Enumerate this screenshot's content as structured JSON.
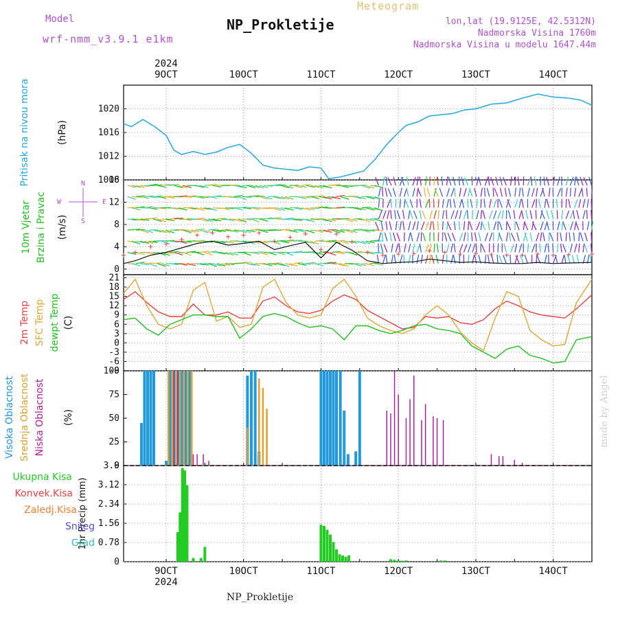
{
  "header": {
    "model_label": "Model",
    "model_name": "wrf-nmm_v3.9.1 e1km",
    "title": "NP_Prokletije",
    "subtitle": "Meteogram",
    "location": "lon,lat (19.9125E, 42.5312N)",
    "altitude": "Nadmorska Visina 1760m",
    "model_altitude": "Nadmorska Visina u modelu 1647.44m"
  },
  "footer": {
    "station": "NP_Prokletije",
    "credit": "made by Angel"
  },
  "time_axis": {
    "year": "2024",
    "day_ticks": [
      "9OCT",
      "10OCT",
      "11OCT",
      "12OCT",
      "13OCT",
      "14OCT"
    ],
    "day_values": [
      9,
      10,
      11,
      12,
      13,
      14
    ],
    "range": [
      8.45,
      14.5
    ]
  },
  "panels": {
    "pressure": {
      "label": "Pritisak na nivou mora",
      "unit": "(hPa)"
    },
    "wind": {
      "label1": "10m Vjetar",
      "label2": "Brzina i Pravac",
      "unit": "(m/s)",
      "rose_n": "N",
      "rose_w": "W",
      "rose_e": "E",
      "rose_s": "S"
    },
    "temp": {
      "label1": "2m Temp",
      "label2": "SFC Temp",
      "label3": "dewpt Temp",
      "unit": "(C)"
    },
    "cloud": {
      "label1": "Visoka Oblacnost",
      "label2": "Srednja Oblacnost",
      "label3": "Niska Oblacnost",
      "unit": "(%)"
    },
    "precip": {
      "unit": "1hr Precip (mm)",
      "legend": [
        "Ukupna Kisa",
        "Konvek.Kisa",
        "Zaledj.Kisa",
        "Snijeg",
        "Grad"
      ]
    }
  },
  "colors": {
    "pressure": "#22a8e0",
    "t2m": "#e84040",
    "tsfc": "#e0a830",
    "dewpt": "#20c020",
    "high_cloud": "#2298dd",
    "mid_cloud": "#e0a030",
    "low_cloud": "#b0209a",
    "rain": "#22cc22",
    "conv": "#e84040",
    "frz": "#f08030",
    "snow": "#5050e0",
    "hail": "#30c0c0",
    "purple": "#b050d0"
  },
  "chart_data": [
    {
      "type": "line",
      "title": "Pritisak na nivou mora",
      "ylabel": "(hPa)",
      "ylim": [
        1008,
        1024
      ],
      "yticks": [
        "1008",
        "1012",
        "1016",
        "1020"
      ],
      "x": [
        8.45,
        8.55,
        8.7,
        8.85,
        9.0,
        9.1,
        9.2,
        9.35,
        9.5,
        9.65,
        9.8,
        9.95,
        10.1,
        10.25,
        10.4,
        10.55,
        10.7,
        10.85,
        11.0,
        11.1,
        11.25,
        11.4,
        11.55,
        11.7,
        11.85,
        12.0,
        12.1,
        12.25,
        12.4,
        12.55,
        12.7,
        12.85,
        13.0,
        13.2,
        13.4,
        13.6,
        13.8,
        14.0,
        14.2,
        14.35,
        14.5
      ],
      "values": [
        1017.5,
        1017.0,
        1018.2,
        1017.0,
        1015.5,
        1013.0,
        1012.3,
        1012.8,
        1012.3,
        1012.7,
        1013.5,
        1014.0,
        1012.5,
        1010.5,
        1010.0,
        1009.8,
        1009.6,
        1010.2,
        1010.0,
        1008.2,
        1008.5,
        1009.0,
        1009.5,
        1011.5,
        1014.0,
        1016.0,
        1017.2,
        1017.8,
        1018.8,
        1019.0,
        1019.2,
        1019.8,
        1020.0,
        1020.8,
        1021.0,
        1021.8,
        1022.5,
        1022.0,
        1021.8,
        1021.5,
        1020.6
      ]
    },
    {
      "type": "line",
      "title": "10m Vjetar Brzina i Pravac",
      "ylabel": "(m/s)",
      "ylim": [
        -1,
        16
      ],
      "yticks": [
        "0",
        "4",
        "8",
        "12",
        "16"
      ],
      "series": [
        {
          "name": "10m Vjetar",
          "x": [
            8.45,
            8.6,
            8.8,
            9.0,
            9.2,
            9.4,
            9.6,
            9.8,
            10.0,
            10.2,
            10.4,
            10.6,
            10.8,
            11.0,
            11.2,
            11.4,
            11.6,
            11.8,
            12.0,
            12.2,
            12.4,
            12.6,
            12.8,
            13.0,
            13.2,
            13.4,
            13.6,
            13.8,
            14.0,
            14.2,
            14.5
          ],
          "values": [
            1.0,
            1.5,
            2.5,
            3.0,
            3.8,
            4.6,
            5.0,
            4.3,
            4.6,
            5.0,
            3.5,
            4.2,
            4.8,
            2.0,
            4.8,
            3.4,
            1.5,
            1.0,
            1.2,
            1.3,
            1.8,
            1.5,
            1.2,
            1.3,
            1.1,
            1.0,
            1.0,
            1.2,
            1.0,
            1.1,
            1.2
          ]
        }
      ]
    },
    {
      "type": "line",
      "title": "Temp",
      "ylabel": "(C)",
      "ylim": [
        -9,
        22
      ],
      "yticks": [
        "-9",
        "-6",
        "-3",
        "0",
        "3",
        "6",
        "9",
        "12",
        "15",
        "18",
        "21"
      ],
      "x": [
        8.45,
        8.6,
        8.75,
        8.9,
        9.05,
        9.2,
        9.35,
        9.5,
        9.65,
        9.8,
        9.95,
        10.1,
        10.25,
        10.4,
        10.55,
        10.7,
        10.85,
        11.0,
        11.15,
        11.3,
        11.45,
        11.6,
        11.75,
        11.9,
        12.05,
        12.2,
        12.35,
        12.5,
        12.65,
        12.8,
        12.95,
        13.1,
        13.25,
        13.4,
        13.55,
        13.7,
        13.85,
        14.0,
        14.15,
        14.3,
        14.5
      ],
      "series": [
        {
          "name": "2m Temp",
          "values": [
            14,
            16.5,
            13,
            10,
            8.5,
            8.5,
            12.5,
            9.0,
            9.0,
            10.0,
            8.0,
            8.0,
            13.5,
            14.8,
            12,
            10,
            9.5,
            10.5,
            13.5,
            15.5,
            14,
            10.5,
            8.5,
            6.5,
            4.5,
            5.0,
            8.5,
            8.0,
            8.5,
            6.5,
            6.0,
            7.5,
            11.0,
            13.5,
            12.0,
            10.0,
            9.0,
            8.5,
            8.0,
            11.0,
            15.5
          ]
        },
        {
          "name": "SFC Temp",
          "values": [
            16,
            20.5,
            12,
            6,
            4.5,
            6.0,
            17,
            19.5,
            7.0,
            8.5,
            5.0,
            6.0,
            18,
            20.5,
            13,
            9.0,
            8.0,
            9.0,
            17.5,
            20.5,
            15,
            8.0,
            5.5,
            4.0,
            3.0,
            4.5,
            9.0,
            12.0,
            9.0,
            3.5,
            0.0,
            -2.5,
            8.0,
            16.5,
            15.0,
            4.0,
            1.0,
            -1.0,
            -0.5,
            13.0,
            20.5
          ]
        },
        {
          "name": "dewpt Temp",
          "values": [
            7.5,
            8.0,
            4.5,
            2.5,
            6.0,
            7.5,
            9.0,
            9.0,
            8.5,
            8.5,
            1.5,
            4.5,
            8.5,
            9.5,
            8.5,
            6.5,
            5.0,
            5.5,
            4.5,
            1.0,
            5.5,
            5.5,
            4.0,
            3.0,
            4.0,
            5.5,
            6.0,
            4.5,
            4.0,
            3.0,
            -1.0,
            -3.0,
            -5.0,
            -2.0,
            -1.0,
            -4.0,
            -5.0,
            -6.5,
            -6.0,
            1.0,
            2.0
          ]
        }
      ]
    },
    {
      "type": "bar",
      "title": "Oblacnost",
      "ylabel": "(%)",
      "ylim": [
        0,
        100
      ],
      "yticks": [
        "0",
        "25",
        "50",
        "75",
        "100"
      ],
      "series": [
        {
          "name": "Visoka Oblacnost",
          "x": [
            8.68,
            8.72,
            8.76,
            8.8,
            8.84,
            9.0,
            9.05,
            9.1,
            9.15,
            9.2,
            9.25,
            9.3,
            10.05,
            10.1,
            10.15,
            10.2,
            11.0,
            11.04,
            11.08,
            11.12,
            11.16,
            11.2,
            11.25,
            11.3,
            11.35,
            11.45,
            11.5
          ],
          "values": [
            45,
            100,
            100,
            100,
            100,
            5,
            100,
            100,
            100,
            100,
            100,
            100,
            95,
            100,
            100,
            15,
            100,
            100,
            100,
            100,
            100,
            100,
            100,
            58,
            12,
            15,
            100
          ]
        },
        {
          "name": "Srednja Oblacnost",
          "x": [
            9.03,
            9.08,
            9.13,
            9.18,
            9.23,
            9.28,
            9.33,
            10.05,
            10.2,
            10.25,
            10.3
          ],
          "values": [
            100,
            100,
            100,
            100,
            100,
            100,
            100,
            40,
            92,
            82,
            60
          ]
        },
        {
          "name": "Niska Oblacnost",
          "x": [
            9.1,
            9.15,
            9.35,
            9.4,
            9.48,
            9.55,
            11.85,
            11.9,
            11.95,
            12.0,
            12.1,
            12.15,
            12.2,
            12.3,
            12.35,
            12.45,
            12.5,
            12.58,
            13.2,
            13.3,
            13.35,
            13.5,
            13.6
          ],
          "values": [
            100,
            100,
            12,
            12,
            12,
            5,
            58,
            55,
            100,
            75,
            50,
            70,
            95,
            48,
            65,
            52,
            50,
            48,
            12,
            10,
            10,
            6,
            3
          ]
        }
      ]
    },
    {
      "type": "bar",
      "title": "1hr Precip",
      "ylabel": "1hr Precip (mm)",
      "ylim": [
        0,
        3.9
      ],
      "yticks": [
        "0",
        "0.78",
        "1.56",
        "2.34",
        "3.12",
        "3.9"
      ],
      "series": [
        {
          "name": "Ukupna Kisa",
          "x": [
            9.15,
            9.18,
            9.21,
            9.24,
            9.27,
            9.35,
            9.45,
            9.5,
            11.0,
            11.04,
            11.08,
            11.12,
            11.16,
            11.2,
            11.24,
            11.28,
            11.32,
            11.36,
            11.9,
            11.95,
            12.0,
            12.05,
            12.1,
            12.55,
            12.6
          ],
          "values": [
            1.2,
            2.0,
            3.8,
            3.7,
            3.1,
            0.15,
            0.15,
            0.6,
            1.5,
            1.45,
            1.3,
            1.1,
            0.8,
            0.5,
            0.3,
            0.25,
            0.2,
            0.25,
            0.1,
            0.08,
            0.05,
            0.04,
            0.05,
            0.05,
            0.05
          ]
        }
      ]
    }
  ]
}
